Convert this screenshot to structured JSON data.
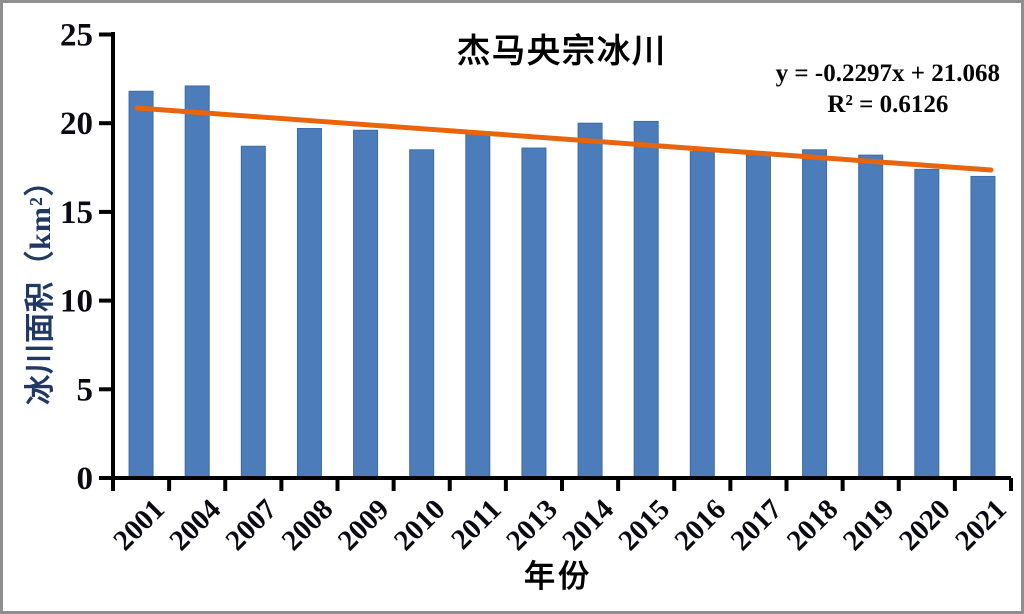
{
  "frame": {
    "border_color": "#8f8f8f",
    "background": "#ffffff"
  },
  "chart_data": {
    "type": "bar",
    "title": "杰马央宗冰川",
    "xlabel": "年份",
    "ylabel": "冰川面积（km²）",
    "categories": [
      "2001",
      "2004",
      "2007",
      "2008",
      "2009",
      "2010",
      "2011",
      "2013",
      "2014",
      "2015",
      "2016",
      "2017",
      "2018",
      "2019",
      "2020",
      "2021"
    ],
    "values": [
      21.8,
      22.1,
      18.7,
      19.7,
      19.6,
      18.5,
      19.4,
      18.6,
      20.0,
      20.1,
      18.4,
      18.3,
      18.5,
      18.2,
      17.4,
      17.0
    ],
    "ylim": [
      0,
      25
    ],
    "y_ticks": [
      0,
      5,
      10,
      15,
      20,
      25
    ],
    "grid": false,
    "legend": "none",
    "bar_color": "#4C7DBA",
    "bar_edge_color": "#3C6CA6",
    "axis_color": "#000000",
    "tick_label_color": "#0a0a12",
    "ylabel_color": "#1F3864",
    "title_color": "#000000",
    "trendline": {
      "equation_label": "y = -0.2297x + 21.068",
      "r2_label": "R² = 0.6126",
      "slope": -0.2297,
      "intercept": 21.068,
      "color": "#E8650D"
    }
  }
}
